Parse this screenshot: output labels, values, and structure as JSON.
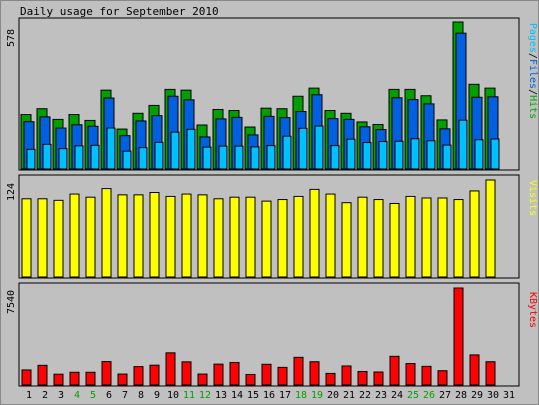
{
  "title": "Daily usage for September 2010",
  "colors": {
    "background": "#c0c0c0",
    "panel": "#c0c0c0",
    "hits": "#00a000",
    "files": "#0060e0",
    "pages": "#00c0ff",
    "visits": "#ffff00",
    "kbytes": "#ff0000",
    "weekend_label": "#00a000",
    "text": "#000000"
  },
  "legends": {
    "top": [
      {
        "text": "Pages",
        "color": "#00c0ff"
      },
      {
        "text": "/",
        "color": "#000000"
      },
      {
        "text": "Files",
        "color": "#0060e0"
      },
      {
        "text": "/",
        "color": "#000000"
      },
      {
        "text": "Hits",
        "color": "#00a000"
      }
    ],
    "middle": {
      "text": "Visits",
      "color": "#ffff00"
    },
    "bottom": {
      "text": "KBytes",
      "color": "#ff0000"
    }
  },
  "chart_data": [
    {
      "type": "bar",
      "name": "hits-files-pages",
      "ymax_label": "578",
      "ylim": [
        0,
        578
      ],
      "categories": [
        "1",
        "2",
        "3",
        "4",
        "5",
        "6",
        "7",
        "8",
        "9",
        "10",
        "11",
        "12",
        "13",
        "14",
        "15",
        "16",
        "17",
        "18",
        "19",
        "20",
        "21",
        "22",
        "23",
        "24",
        "25",
        "26",
        "27",
        "28",
        "29",
        "30",
        "31"
      ],
      "weekend_days": [
        "4",
        "5",
        "11",
        "12",
        "18",
        "19",
        "25",
        "26"
      ],
      "series": [
        {
          "name": "Hits",
          "values": [
            214,
            237,
            195,
            214,
            191,
            310,
            157,
            219,
            250,
            313,
            310,
            173,
            234,
            230,
            165,
            239,
            237,
            286,
            318,
            230,
            219,
            185,
            175,
            313,
            313,
            288,
            193,
            578,
            333,
            318,
            0
          ]
        },
        {
          "name": "Files",
          "values": [
            186,
            205,
            161,
            174,
            168,
            279,
            131,
            189,
            210,
            286,
            272,
            126,
            197,
            203,
            134,
            207,
            202,
            226,
            292,
            198,
            195,
            166,
            155,
            280,
            273,
            256,
            158,
            534,
            282,
            284,
            0
          ]
        },
        {
          "name": "Pages",
          "values": [
            77,
            97,
            80,
            91,
            93,
            161,
            70,
            84,
            105,
            145,
            156,
            86,
            90,
            90,
            87,
            92,
            129,
            160,
            169,
            92,
            117,
            104,
            108,
            109,
            119,
            111,
            94,
            192,
            115,
            118,
            0
          ]
        }
      ]
    },
    {
      "type": "bar",
      "name": "visits",
      "ymax_label": "124",
      "ylim": [
        0,
        124
      ],
      "categories": [
        "1",
        "2",
        "3",
        "4",
        "5",
        "6",
        "7",
        "8",
        "9",
        "10",
        "11",
        "12",
        "13",
        "14",
        "15",
        "16",
        "17",
        "18",
        "19",
        "20",
        "21",
        "22",
        "23",
        "24",
        "25",
        "26",
        "27",
        "28",
        "29",
        "30",
        "31"
      ],
      "series": [
        {
          "name": "Visits",
          "values": [
            100,
            100,
            98,
            106,
            102,
            113,
            105,
            105,
            108,
            103,
            106,
            105,
            100,
            102,
            102,
            97,
            99,
            103,
            112,
            106,
            95,
            102,
            99,
            94,
            103,
            101,
            101,
            99,
            110,
            124,
            0
          ]
        }
      ]
    },
    {
      "type": "bar",
      "name": "kbytes",
      "ymax_label": "7540",
      "ylim": [
        0,
        7540
      ],
      "categories": [
        "1",
        "2",
        "3",
        "4",
        "5",
        "6",
        "7",
        "8",
        "9",
        "10",
        "11",
        "12",
        "13",
        "14",
        "15",
        "16",
        "17",
        "18",
        "19",
        "20",
        "21",
        "22",
        "23",
        "24",
        "25",
        "26",
        "27",
        "28",
        "29",
        "30",
        "31"
      ],
      "series": [
        {
          "name": "KBytes",
          "values": [
            1170,
            1530,
            840,
            990,
            990,
            1820,
            850,
            1430,
            1540,
            2500,
            1800,
            850,
            1620,
            1750,
            820,
            1610,
            1370,
            2150,
            1810,
            900,
            1480,
            1050,
            1010,
            2230,
            1670,
            1450,
            1110,
            7540,
            2340,
            1810,
            0
          ]
        }
      ]
    }
  ]
}
